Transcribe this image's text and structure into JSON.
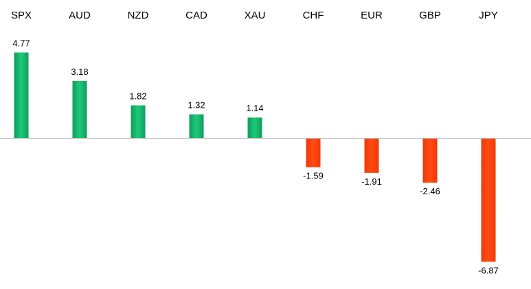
{
  "chart_data": {
    "type": "bar",
    "title": "",
    "xlabel": "",
    "ylabel": "",
    "categories": [
      "SPX",
      "AUD",
      "NZD",
      "CAD",
      "XAU",
      "CHF",
      "EUR",
      "GBP",
      "JPY"
    ],
    "values": [
      4.77,
      3.18,
      1.82,
      1.32,
      1.14,
      -1.59,
      -1.91,
      -2.46,
      -6.87
    ],
    "value_labels": [
      "4.77",
      "3.18",
      "1.82",
      "1.32",
      "1.14",
      "-1.59",
      "-1.91",
      "-2.46",
      "-6.87"
    ],
    "ylim": [
      -6.87,
      4.77
    ],
    "grid": false,
    "legend": "none",
    "category_label_position": "top",
    "colors": {
      "positive": "#14b56a",
      "negative": "#ff3f0a",
      "zero_line": "#bfbfbf"
    }
  }
}
